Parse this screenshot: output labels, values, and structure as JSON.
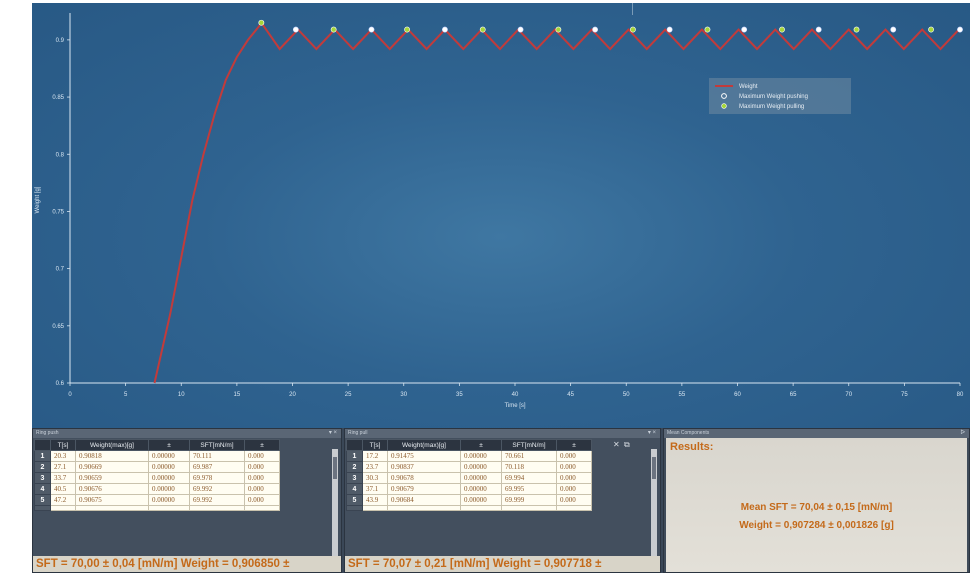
{
  "colors": {
    "frame": "#2f5d83",
    "curve": "#c23b3b",
    "max_marker": "#ffffff",
    "min_marker": "#a6d63a",
    "result_text": "#c46a1a",
    "axis": "#d8e6f2"
  },
  "chart_data": {
    "type": "line",
    "xlabel": "Time [s]",
    "ylabel": "Weight [g]",
    "xlim": [
      0,
      80
    ],
    "ylim": [
      0.6,
      0.92
    ],
    "x_ticks": [
      "0",
      "5",
      "10",
      "15",
      "20",
      "25",
      "30",
      "35",
      "40",
      "45",
      "50",
      "55",
      "60",
      "65",
      "70",
      "75",
      "80"
    ],
    "y_ticks": [
      "0.6",
      "0.65",
      "0.7",
      "0.75",
      "0.8",
      "0.85",
      "0.9"
    ],
    "y_tick_values": [
      0.6,
      0.65,
      0.7,
      0.75,
      0.8,
      0.85,
      0.9
    ],
    "grid": false,
    "legend_position": "top-right",
    "series": [
      {
        "name": "Weight",
        "kind": "line",
        "x": [
          7.6,
          9,
          10,
          11,
          12,
          13,
          14,
          15,
          16,
          17,
          17.2
        ],
        "y": [
          0.6,
          0.66,
          0.71,
          0.76,
          0.8,
          0.835,
          0.865,
          0.885,
          0.9,
          0.912,
          0.915
        ],
        "oscillation": {
          "start": 17.2,
          "end": 80,
          "period": 3.3,
          "high": 0.909,
          "low": 0.892
        }
      },
      {
        "name": "Maximum Weight pushing",
        "kind": "marker",
        "x": [
          20.3,
          27.1,
          33.7,
          40.5,
          47.2,
          53.9,
          60.6,
          67.3,
          74.0,
          80.0
        ],
        "y": [
          0.909,
          0.909,
          0.909,
          0.909,
          0.909,
          0.909,
          0.909,
          0.909,
          0.909,
          0.909
        ]
      },
      {
        "name": "Maximum Weight pulling",
        "kind": "marker",
        "x": [
          17.2,
          23.7,
          30.3,
          37.1,
          43.9,
          50.6,
          57.3,
          64.0,
          70.7,
          77.4
        ],
        "y": [
          0.915,
          0.909,
          0.909,
          0.909,
          0.909,
          0.909,
          0.909,
          0.909,
          0.909,
          0.909
        ]
      }
    ]
  },
  "pushing_panel": {
    "title": "Ring push",
    "headers": [
      "T[s]",
      "Weight(max)[g]",
      "±",
      "SFT[mN/m]",
      "±"
    ],
    "rows": [
      {
        "n": "1",
        "t": "20.3",
        "w": "0.90818",
        "pm": "0.00000",
        "sft": "70.111",
        "pm2": "0.000"
      },
      {
        "n": "2",
        "t": "27.1",
        "w": "0.90669",
        "pm": "0.00000",
        "sft": "69.987",
        "pm2": "0.000"
      },
      {
        "n": "3",
        "t": "33.7",
        "w": "0.90659",
        "pm": "0.00000",
        "sft": "69.978",
        "pm2": "0.000"
      },
      {
        "n": "4",
        "t": "40.5",
        "w": "0.90676",
        "pm": "0.00000",
        "sft": "69.992",
        "pm2": "0.000"
      },
      {
        "n": "5",
        "t": "47.2",
        "w": "0.90675",
        "pm": "0.00000",
        "sft": "69.992",
        "pm2": "0.000"
      }
    ],
    "summary": "SFT = 70,00 ± 0,04 [mN/m]   Weight = 0,906850 ±"
  },
  "pulling_panel": {
    "title": "Ring pull",
    "headers": [
      "T[s]",
      "Weight(max)[g]",
      "±",
      "SFT[mN/m]",
      "±"
    ],
    "rows": [
      {
        "n": "1",
        "t": "17.2",
        "w": "0.91475",
        "pm": "0.00000",
        "sft": "70.661",
        "pm2": "0.000"
      },
      {
        "n": "2",
        "t": "23.7",
        "w": "0.90837",
        "pm": "0.00000",
        "sft": "70.118",
        "pm2": "0.000"
      },
      {
        "n": "3",
        "t": "30.3",
        "w": "0.90678",
        "pm": "0.00000",
        "sft": "69.994",
        "pm2": "0.000"
      },
      {
        "n": "4",
        "t": "37.1",
        "w": "0.90679",
        "pm": "0.00000",
        "sft": "69.995",
        "pm2": "0.000"
      },
      {
        "n": "5",
        "t": "43.9",
        "w": "0.90684",
        "pm": "0.00000",
        "sft": "69.999",
        "pm2": "0.000"
      }
    ],
    "summary": "SFT = 70,07 ± 0,21 [mN/m]   Weight = 0,907718 ±"
  },
  "mean_panel": {
    "title": "Mean Components",
    "results_label": "Results:",
    "mean_sft": "Mean SFT = 70,04 ± 0,15 [mN/m]",
    "weight": "Weight = 0,907284 ± 0,001826 [g]"
  }
}
